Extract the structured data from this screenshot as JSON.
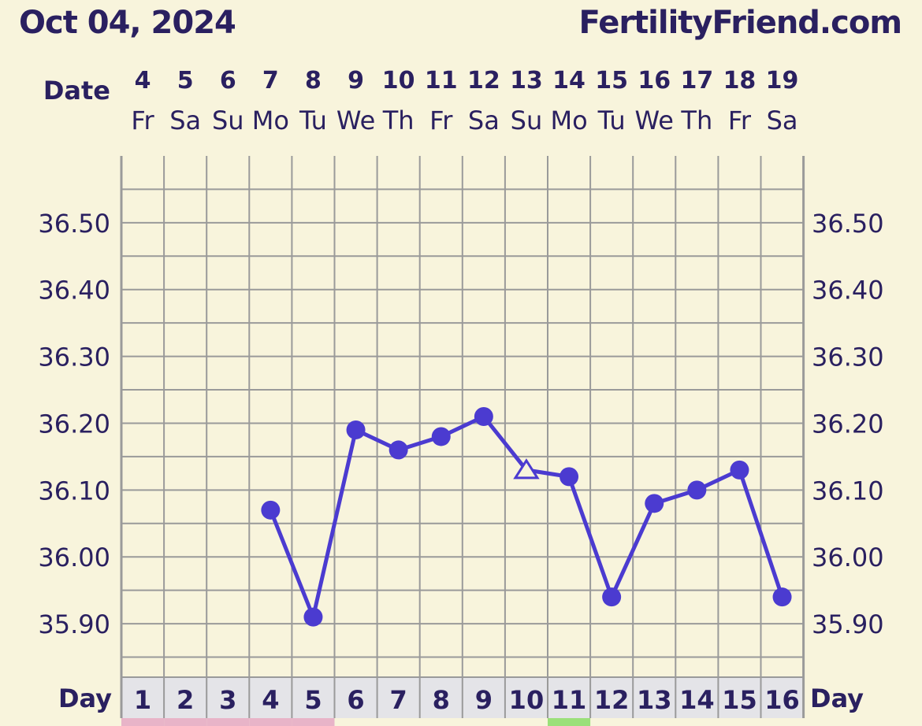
{
  "header": {
    "date": "Oct 04, 2024",
    "site": "FertilityFriend.com"
  },
  "labels": {
    "date_row": "Date",
    "day_row": "Day"
  },
  "colors": {
    "line": "#4b3bd0",
    "grid": "#9a9a9a",
    "background": "#f8f4dc",
    "text": "#2a2060",
    "menstruation": "#e8b4c8",
    "positive_opk": "#9be07a"
  },
  "chart_data": {
    "type": "line",
    "dates": [
      "4",
      "5",
      "6",
      "7",
      "8",
      "9",
      "10",
      "11",
      "12",
      "13",
      "14",
      "15",
      "16",
      "17",
      "18",
      "19"
    ],
    "weekdays": [
      "Fr",
      "Sa",
      "Su",
      "Mo",
      "Tu",
      "We",
      "Th",
      "Fr",
      "Sa",
      "Su",
      "Mo",
      "Tu",
      "We",
      "Th",
      "Fr",
      "Sa"
    ],
    "cycle_days": [
      "1",
      "2",
      "3",
      "4",
      "5",
      "6",
      "7",
      "8",
      "9",
      "10",
      "11",
      "12",
      "13",
      "14",
      "15",
      "16"
    ],
    "y_ticks": [
      "36.50",
      "36.40",
      "36.30",
      "36.20",
      "36.10",
      "36.00",
      "35.90"
    ],
    "y_tick_values": [
      36.5,
      36.4,
      36.3,
      36.2,
      36.1,
      36.0,
      35.9
    ],
    "ylim": [
      35.82,
      36.6
    ],
    "series": [
      {
        "values": [
          null,
          null,
          null,
          36.07,
          35.91,
          36.19,
          36.16,
          36.18,
          36.21,
          36.13,
          36.12,
          35.94,
          36.08,
          36.1,
          36.13,
          35.94
        ],
        "markers": [
          "",
          "",
          "",
          "circle",
          "circle",
          "circle",
          "circle",
          "circle",
          "circle",
          "triangle-open",
          "circle",
          "circle",
          "circle",
          "circle",
          "circle",
          "circle"
        ]
      }
    ],
    "day_strip": [
      "menstruation",
      "menstruation",
      "menstruation",
      "menstruation",
      "menstruation",
      "",
      "",
      "",
      "",
      "",
      "positive_opk",
      "",
      "",
      "",
      "",
      ""
    ]
  }
}
